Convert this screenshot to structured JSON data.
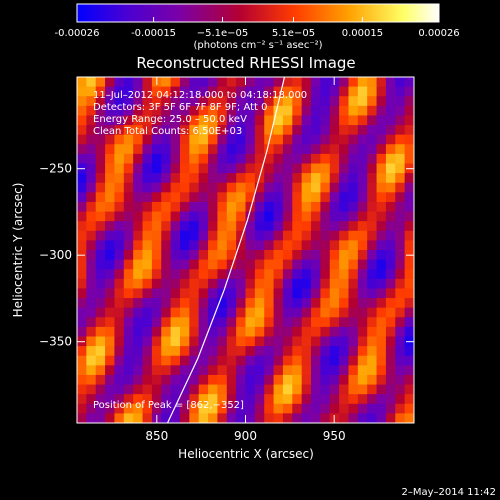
{
  "chart_data": {
    "type": "heatmap",
    "title": "Reconstructed RHESSI Image",
    "xlabel": "Heliocentric X (arcsec)",
    "ylabel": "Heliocentric Y (arcsec)",
    "xlim": [
      805,
      995
    ],
    "ylim": [
      -397,
      -197
    ],
    "x_ticks": [
      850,
      900,
      950
    ],
    "y_ticks": [
      -250,
      -300,
      -350
    ],
    "x_tick_labels": [
      "850",
      "900",
      "950"
    ],
    "y_tick_labels": [
      "−250",
      "−300",
      "−350"
    ],
    "colorbar": {
      "range": [
        -0.00026,
        0.00026
      ],
      "tick_values": [
        -0.00026,
        -0.00015,
        -5.1e-05,
        5.1e-05,
        0.00015,
        0.00026
      ],
      "tick_labels": [
        "-0.00026",
        "-0.00015",
        "−5.1e−05",
        "5.1e−05",
        "0.00015",
        "0.00026"
      ],
      "unit_label": "(photons cm⁻² s⁻¹ asec⁻²)",
      "colors": [
        "#0000ff",
        "#4b00d2",
        "#7a00a8",
        "#b40032",
        "#ff3c00",
        "#ffa000",
        "#ffff64",
        "#ffffff"
      ]
    },
    "annotations": [
      "11–Jul–2012 04:12:18.000 to 04:18:18.000",
      "Detectors: 3F 5F 6F 7F 8F 9F; Att 0",
      "Energy Range: 25.0 – 50.0 keV",
      "Clean    Total Counts: 6.50E+03",
      "Position of Peak = [862,−352]"
    ],
    "limb_points": [
      [
        856,
        -397
      ],
      [
        873,
        -360
      ],
      [
        888,
        -320
      ],
      [
        901,
        -280
      ],
      [
        912,
        -240
      ],
      [
        922,
        -197
      ]
    ],
    "peak_position": [
      862,
      -352
    ],
    "grid": false,
    "legend": "none"
  },
  "timestamp": "2–May–2014 11:42"
}
